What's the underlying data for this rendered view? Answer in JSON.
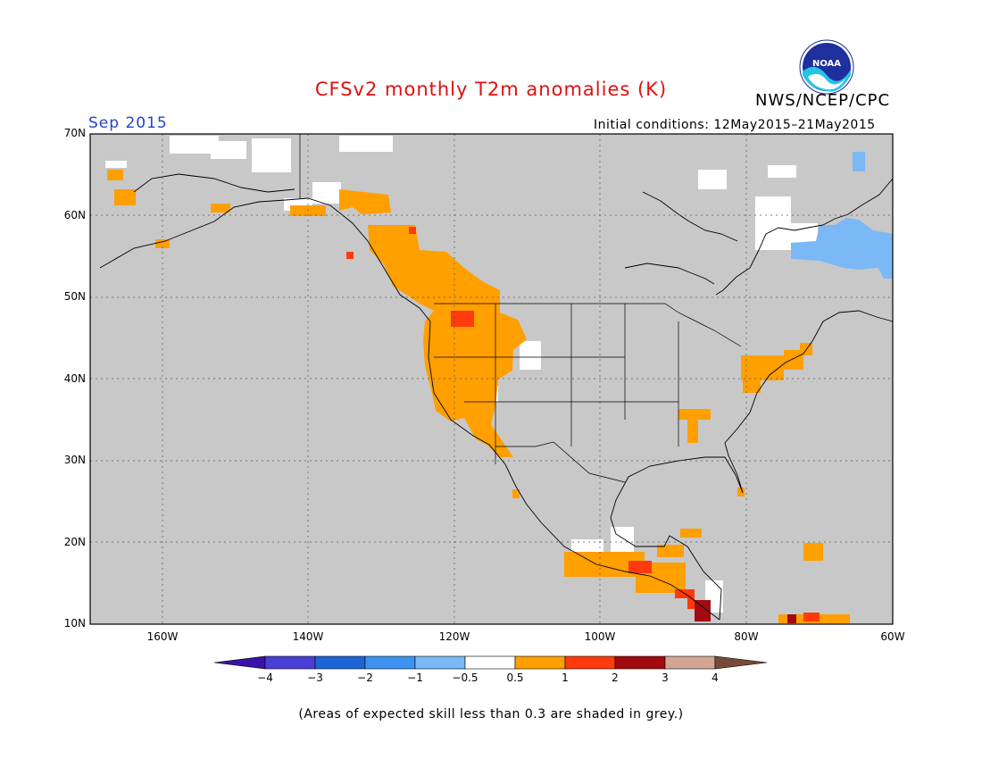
{
  "title": "CFSv2 monthly T2m anomalies (K)",
  "organization": "NWS/NCEP/CPC",
  "logo_text": "NOAA",
  "forecast_month": "Sep 2015",
  "initial_conditions": "Initial conditions: 12May2015–21May2015",
  "footnote": "(Areas of expected skill less than 0.3 are shaded in grey.)",
  "map": {
    "projection": "lat-lon",
    "lon_range": [
      -170,
      -60
    ],
    "lat_range": [
      10,
      70
    ],
    "lat_labels": [
      "70N",
      "60N",
      "50N",
      "40N",
      "30N",
      "20N",
      "10N"
    ],
    "lon_labels": [
      "160W",
      "140W",
      "120W",
      "100W",
      "80W",
      "60W"
    ],
    "gridlines": "dotted",
    "low_skill_color": "#c8c8c8"
  },
  "colorbar": {
    "labels": [
      "−4",
      "−3",
      "−2",
      "−1",
      "−0.5",
      "0.5",
      "1",
      "2",
      "3",
      "4"
    ],
    "colors": [
      "#3a13a8",
      "#4a3fd4",
      "#1d64d6",
      "#3d94f0",
      "#7ab8f6",
      "#ffffff",
      "#ff9f00",
      "#ff3a0c",
      "#a30a10",
      "#d3a593",
      "#7a4a3a"
    ]
  }
}
